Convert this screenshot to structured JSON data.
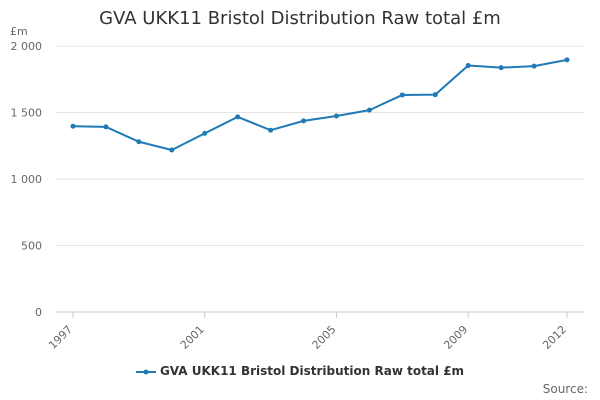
{
  "chart_data": {
    "type": "line",
    "title": "GVA UKK11 Bristol Distribution Raw total £m",
    "ylabel": "£m",
    "xlabel": "",
    "ylim": [
      0,
      2000
    ],
    "yticks": [
      0,
      500,
      1000,
      1500,
      2000
    ],
    "ytick_labels": [
      "0",
      "500",
      "1 000",
      "1 500",
      "2 000"
    ],
    "xticks": [
      1997,
      2001,
      2005,
      2009,
      2012
    ],
    "x": [
      1997,
      1998,
      1999,
      2000,
      2001,
      2002,
      2003,
      2004,
      2005,
      2006,
      2007,
      2008,
      2009,
      2010,
      2011,
      2012
    ],
    "series": [
      {
        "name": "GVA UKK11 Bristol Distribution Raw total £m",
        "values": [
          1397,
          1392,
          1280,
          1218,
          1343,
          1467,
          1367,
          1437,
          1474,
          1518,
          1632,
          1634,
          1853,
          1837,
          1849,
          1896
        ]
      }
    ],
    "color": "#1f7ab5",
    "gridlines": "horizontal",
    "legend": "bottom-center"
  },
  "source_label": "Source:"
}
